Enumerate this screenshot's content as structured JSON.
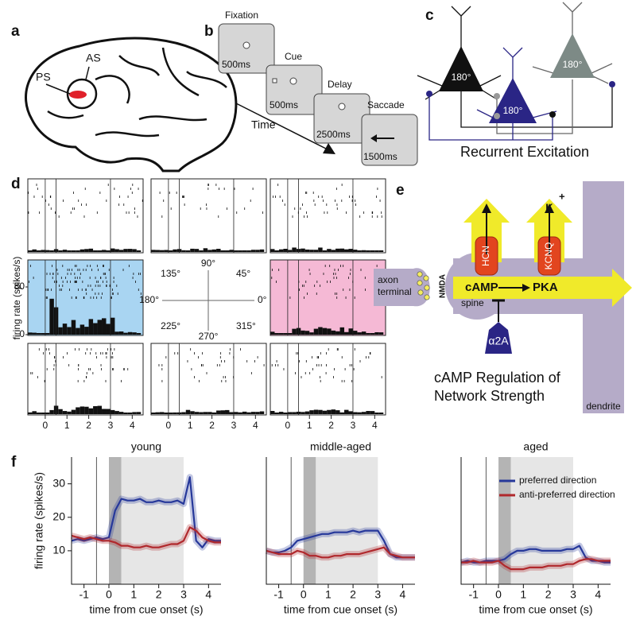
{
  "panels": {
    "a": {
      "letter": "a",
      "labels": [
        "AS",
        "PS"
      ]
    },
    "b": {
      "letter": "b",
      "steps": [
        {
          "name": "Fixation",
          "duration": "500ms"
        },
        {
          "name": "Cue",
          "duration": "500ms"
        },
        {
          "name": "Delay",
          "duration": "2500ms"
        },
        {
          "name": "Saccade",
          "duration": "1500ms"
        }
      ],
      "axis": "Time"
    },
    "c": {
      "letter": "c",
      "neurons": [
        "180°",
        "180°",
        "180°"
      ],
      "title": "Recurrent Excitation"
    },
    "d": {
      "letter": "d",
      "ylabel": "firing rate (spikes/s)",
      "yticks": [
        0,
        80
      ],
      "xticks": [
        0,
        1,
        2,
        3,
        4
      ],
      "directions": [
        "90°",
        "45°",
        "0°",
        "315°",
        "270°",
        "225°",
        "180°",
        "135°"
      ]
    },
    "e": {
      "letter": "e",
      "channels": [
        "HCN",
        "KCNQ"
      ],
      "ion": "K",
      "charge": "+",
      "messenger": "cAMP",
      "kinase": "PKA",
      "receptor": "NMDA",
      "terminal": [
        "axon",
        "terminal"
      ],
      "spine": "spine",
      "alpha": "α2A",
      "dendrite": "dendrite",
      "title": [
        "cAMP Regulation of",
        "Network Strength"
      ]
    },
    "f": {
      "letter": "f"
    }
  },
  "chart_data": [
    {
      "type": "line",
      "title": "young",
      "xlabel": "time from cue onset (s)",
      "ylabel": "firing rate (spikes/s)",
      "x": [
        -1.5,
        -1.25,
        -1,
        -0.75,
        -0.5,
        -0.25,
        0,
        0.25,
        0.5,
        0.75,
        1,
        1.25,
        1.5,
        1.75,
        2,
        2.25,
        2.5,
        2.75,
        3,
        3.25,
        3.5,
        3.75,
        4,
        4.25,
        4.5
      ],
      "xlim": [
        -1.5,
        4.5
      ],
      "xticks": [
        -1,
        0,
        1,
        2,
        3,
        4
      ],
      "ylim": [
        0,
        38
      ],
      "yticks": [
        10,
        20,
        30
      ],
      "series": [
        {
          "color": "#26389a",
          "values": [
            13,
            13.5,
            13,
            13.5,
            14,
            13.5,
            14,
            22,
            25.5,
            25,
            25,
            25.5,
            24.5,
            24.5,
            25,
            24.5,
            24.5,
            25,
            24,
            32,
            13,
            11,
            13.5,
            13,
            13
          ]
        },
        {
          "color": "#b0282c",
          "values": [
            14.5,
            14,
            13.5,
            14,
            13.5,
            13,
            13,
            12.5,
            11.5,
            11.5,
            11,
            11,
            11.5,
            11,
            11,
            11.5,
            12,
            12,
            13,
            17,
            16,
            14,
            13,
            12.5,
            12.5
          ]
        }
      ]
    },
    {
      "type": "line",
      "title": "middle-aged",
      "xlabel": "time from cue onset (s)",
      "x": [
        -1.5,
        -1.25,
        -1,
        -0.75,
        -0.5,
        -0.25,
        0,
        0.25,
        0.5,
        0.75,
        1,
        1.25,
        1.5,
        1.75,
        2,
        2.25,
        2.5,
        2.75,
        3,
        3.25,
        3.5,
        3.75,
        4,
        4.25,
        4.5
      ],
      "xlim": [
        -1.5,
        4.5
      ],
      "xticks": [
        -1,
        0,
        1,
        2,
        3,
        4
      ],
      "ylim": [
        0,
        38
      ],
      "series": [
        {
          "color": "#26389a",
          "values": [
            10,
            9.5,
            9.5,
            10,
            11,
            13,
            13.5,
            14,
            14.5,
            15,
            15,
            15.5,
            15.5,
            15.5,
            16,
            15.5,
            16,
            16,
            16,
            13,
            9,
            8,
            8,
            8,
            8
          ]
        },
        {
          "color": "#b0282c",
          "values": [
            10,
            9.5,
            9,
            9,
            9,
            10,
            9.5,
            8.5,
            8.5,
            8,
            8,
            8.5,
            8.5,
            9,
            9,
            9,
            9.5,
            10,
            10.5,
            11,
            9,
            8.5,
            8,
            8,
            8
          ]
        }
      ]
    },
    {
      "type": "line",
      "title": "aged",
      "xlabel": "time from cue onset (s)",
      "x": [
        -1.5,
        -1.25,
        -1,
        -0.75,
        -0.5,
        -0.25,
        0,
        0.25,
        0.5,
        0.75,
        1,
        1.25,
        1.5,
        1.75,
        2,
        2.25,
        2.5,
        2.75,
        3,
        3.25,
        3.5,
        3.75,
        4,
        4.25,
        4.5
      ],
      "xlim": [
        -1.5,
        4.5
      ],
      "xticks": [
        -1,
        0,
        1,
        2,
        3,
        4
      ],
      "ylim": [
        0,
        38
      ],
      "legend": "upper right",
      "series": [
        {
          "name": "preferred direction",
          "color": "#26389a",
          "values": [
            6.5,
            7,
            6.5,
            6.5,
            7,
            7,
            7,
            7.5,
            9,
            10,
            10,
            10.5,
            10.5,
            10,
            10,
            10,
            10,
            10.5,
            10.5,
            11.5,
            8,
            7,
            7,
            6.5,
            6.5
          ]
        },
        {
          "name": "anti-preferred direction",
          "color": "#b0282c",
          "values": [
            6.5,
            6.5,
            7,
            6.5,
            6.5,
            6.5,
            7,
            5.5,
            4.5,
            4.5,
            4.5,
            5,
            5,
            5,
            5.5,
            5.5,
            5.5,
            6,
            6,
            7,
            7.5,
            7.5,
            7,
            7,
            7
          ]
        }
      ]
    }
  ]
}
